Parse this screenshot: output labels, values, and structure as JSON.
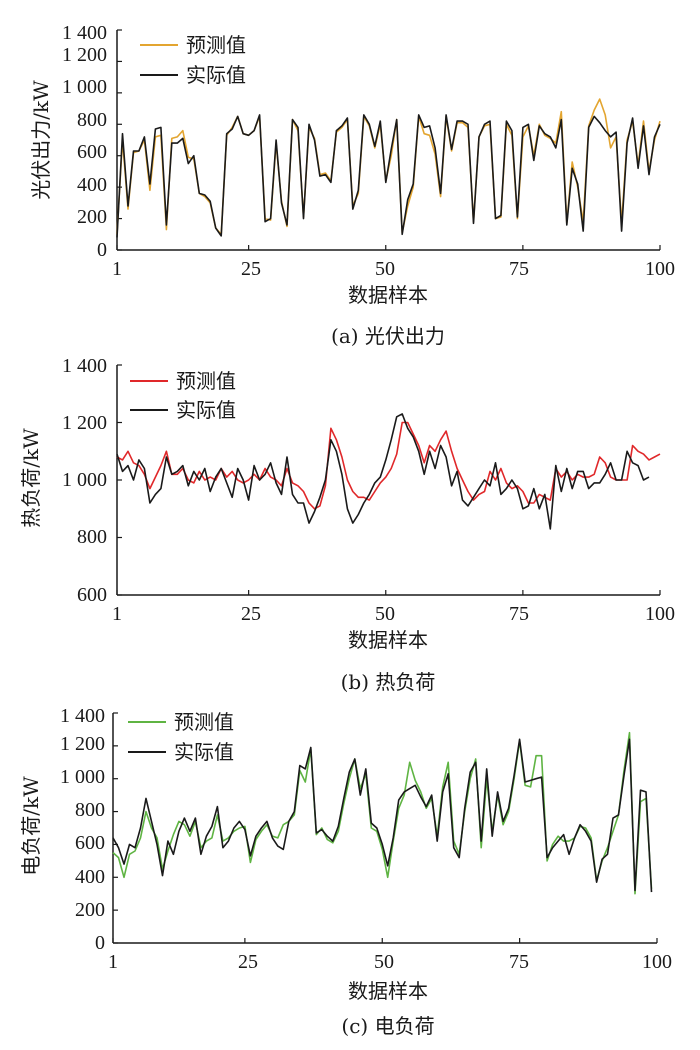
{
  "chart_data": [
    {
      "type": "line",
      "caption": "(a) 光伏出力",
      "xlabel": "数据样本",
      "ylabel": "光伏出力/kW",
      "xlim": [
        1,
        100
      ],
      "ylim": [
        0,
        1400
      ],
      "xticks": [
        1,
        25,
        50,
        75,
        100
      ],
      "yticks": [
        0,
        200,
        400,
        600,
        800,
        1000,
        1200,
        1400
      ],
      "ytick_labels": [
        "0",
        "200",
        "400",
        "600",
        "800",
        "1 000",
        "1 200",
        "1 400"
      ],
      "legend_position": "top-left",
      "series": [
        {
          "name": "预测值",
          "color": "#E3A530",
          "values": [
            100,
            700,
            260,
            620,
            630,
            700,
            380,
            720,
            730,
            130,
            710,
            720,
            760,
            590,
            580,
            360,
            340,
            300,
            140,
            100,
            730,
            780,
            850,
            740,
            730,
            760,
            850,
            200,
            190,
            680,
            310,
            150,
            830,
            760,
            210,
            780,
            710,
            480,
            490,
            440,
            750,
            780,
            830,
            280,
            360,
            850,
            790,
            650,
            800,
            440,
            600,
            830,
            110,
            280,
            400,
            850,
            740,
            730,
            610,
            340,
            850,
            630,
            810,
            810,
            780,
            180,
            720,
            790,
            800,
            200,
            210,
            800,
            730,
            200,
            720,
            790,
            600,
            800,
            730,
            710,
            680,
            880,
            170,
            560,
            400,
            180,
            790,
            890,
            960,
            860,
            650,
            720,
            170,
            700,
            820,
            540,
            820,
            500,
            700,
            820
          ]
        },
        {
          "name": "实际值",
          "color": "#1a1a1a",
          "values": [
            80,
            740,
            280,
            630,
            630,
            720,
            420,
            770,
            780,
            160,
            680,
            680,
            710,
            550,
            600,
            360,
            350,
            310,
            140,
            90,
            740,
            770,
            850,
            740,
            730,
            760,
            860,
            180,
            200,
            700,
            300,
            160,
            830,
            780,
            200,
            800,
            700,
            470,
            480,
            430,
            760,
            790,
            840,
            260,
            380,
            860,
            800,
            660,
            820,
            430,
            640,
            830,
            100,
            320,
            420,
            860,
            780,
            790,
            650,
            360,
            860,
            640,
            820,
            820,
            800,
            170,
            720,
            800,
            820,
            200,
            220,
            820,
            760,
            210,
            780,
            800,
            570,
            790,
            740,
            720,
            650,
            830,
            160,
            520,
            420,
            120,
            780,
            850,
            810,
            760,
            720,
            750,
            120,
            680,
            840,
            520,
            790,
            480,
            720,
            800
          ]
        }
      ]
    },
    {
      "type": "line",
      "caption": "(b) 热负荷",
      "xlabel": "数据样本",
      "ylabel": "热负荷/kW",
      "xlim": [
        1,
        100
      ],
      "ylim": [
        600,
        1400
      ],
      "xticks": [
        1,
        25,
        50,
        75,
        100
      ],
      "yticks": [
        600,
        800,
        1000,
        1200,
        1400
      ],
      "ytick_labels": [
        "600",
        "800",
        "1 000",
        "1 200",
        "1 400"
      ],
      "legend_position": "top-left",
      "series": [
        {
          "name": "预测值",
          "color": "#E0282A",
          "values": [
            1080,
            1070,
            1100,
            1060,
            1050,
            1020,
            970,
            1010,
            1050,
            1100,
            1020,
            1020,
            1040,
            1000,
            990,
            1030,
            1000,
            1010,
            1000,
            1040,
            1010,
            1030,
            1000,
            990,
            1000,
            1020,
            1000,
            1040,
            1010,
            1000,
            980,
            1040,
            990,
            980,
            960,
            920,
            900,
            910,
            980,
            1180,
            1140,
            1080,
            1000,
            960,
            940,
            940,
            930,
            960,
            990,
            1010,
            1040,
            1090,
            1200,
            1200,
            1160,
            1120,
            1060,
            1120,
            1100,
            1140,
            1170,
            1100,
            1040,
            1000,
            960,
            930,
            950,
            960,
            1030,
            1000,
            1040,
            990,
            970,
            980,
            960,
            920,
            920,
            950,
            940,
            930,
            1040,
            1010,
            1030,
            1000,
            1020,
            1010,
            1010,
            1020,
            1080,
            1060,
            1010,
            1000,
            1000,
            1000,
            1120,
            1100,
            1090,
            1070,
            1080,
            1090
          ]
        },
        {
          "name": "实际值",
          "color": "#1a1a1a",
          "values": [
            1090,
            1030,
            1050,
            1000,
            1070,
            1040,
            920,
            950,
            970,
            1080,
            1020,
            1030,
            1050,
            980,
            1030,
            1000,
            1040,
            960,
            1010,
            1040,
            990,
            940,
            1040,
            1000,
            930,
            1050,
            1000,
            1020,
            1060,
            990,
            950,
            1080,
            950,
            920,
            920,
            850,
            890,
            940,
            1000,
            1140,
            1100,
            1020,
            900,
            850,
            880,
            920,
            950,
            990,
            1010,
            1070,
            1140,
            1220,
            1230,
            1180,
            1150,
            1100,
            1020,
            1100,
            1040,
            1120,
            1080,
            980,
            1030,
            930,
            910,
            940,
            970,
            1000,
            980,
            1060,
            950,
            970,
            1000,
            970,
            900,
            910,
            970,
            900,
            950,
            830,
            1050,
            960,
            1040,
            970,
            1030,
            1030,
            970,
            990,
            990,
            1020,
            1060,
            1000,
            1000,
            1100,
            1060,
            1050,
            1000,
            1010
          ]
        }
      ]
    },
    {
      "type": "line",
      "caption": "(c) 电负荷",
      "xlabel": "数据样本",
      "ylabel": "电负荷/kW",
      "xlim": [
        1,
        100
      ],
      "ylim": [
        0,
        1400
      ],
      "xticks": [
        1,
        25,
        50,
        75,
        100
      ],
      "yticks": [
        0,
        200,
        400,
        600,
        800,
        1000,
        1200,
        1400
      ],
      "ytick_labels": [
        "0",
        "200",
        "400",
        "600",
        "800",
        "1 000",
        "1 200",
        "1 400"
      ],
      "legend_position": "top-left",
      "series": [
        {
          "name": "预测值",
          "color": "#5FB443",
          "values": [
            550,
            520,
            400,
            540,
            560,
            640,
            800,
            700,
            640,
            450,
            560,
            660,
            740,
            720,
            650,
            740,
            580,
            620,
            640,
            780,
            620,
            640,
            680,
            700,
            710,
            490,
            630,
            680,
            720,
            650,
            640,
            720,
            740,
            780,
            1050,
            980,
            1180,
            660,
            700,
            630,
            610,
            680,
            850,
            1000,
            1120,
            940,
            1030,
            700,
            680,
            570,
            400,
            620,
            820,
            900,
            1100,
            990,
            920,
            820,
            880,
            650,
            950,
            1100,
            620,
            540,
            800,
            1000,
            1120,
            580,
            1000,
            680,
            900,
            720,
            800,
            1000,
            1230,
            960,
            950,
            1140,
            1140,
            500,
            600,
            650,
            620,
            620,
            640,
            710,
            700,
            640,
            380,
            500,
            580,
            680,
            780,
            1050,
            1280,
            300,
            860,
            880,
            330
          ]
        },
        {
          "name": "实际值",
          "color": "#1a1a1a",
          "values": [
            640,
            580,
            480,
            600,
            580,
            700,
            880,
            740,
            600,
            410,
            620,
            540,
            680,
            760,
            680,
            760,
            540,
            650,
            710,
            830,
            580,
            620,
            700,
            740,
            690,
            530,
            650,
            700,
            740,
            640,
            590,
            570,
            740,
            800,
            1080,
            1060,
            1190,
            670,
            690,
            650,
            620,
            710,
            880,
            1040,
            1120,
            900,
            1060,
            730,
            700,
            600,
            470,
            640,
            870,
            920,
            940,
            960,
            890,
            830,
            900,
            620,
            920,
            1030,
            580,
            520,
            820,
            1040,
            1100,
            620,
            1060,
            650,
            920,
            740,
            820,
            1020,
            1240,
            980,
            990,
            1000,
            1010,
            520,
            580,
            620,
            660,
            540,
            640,
            720,
            680,
            620,
            370,
            510,
            540,
            760,
            780,
            1020,
            1240,
            320,
            930,
            920,
            310
          ]
        }
      ]
    }
  ]
}
